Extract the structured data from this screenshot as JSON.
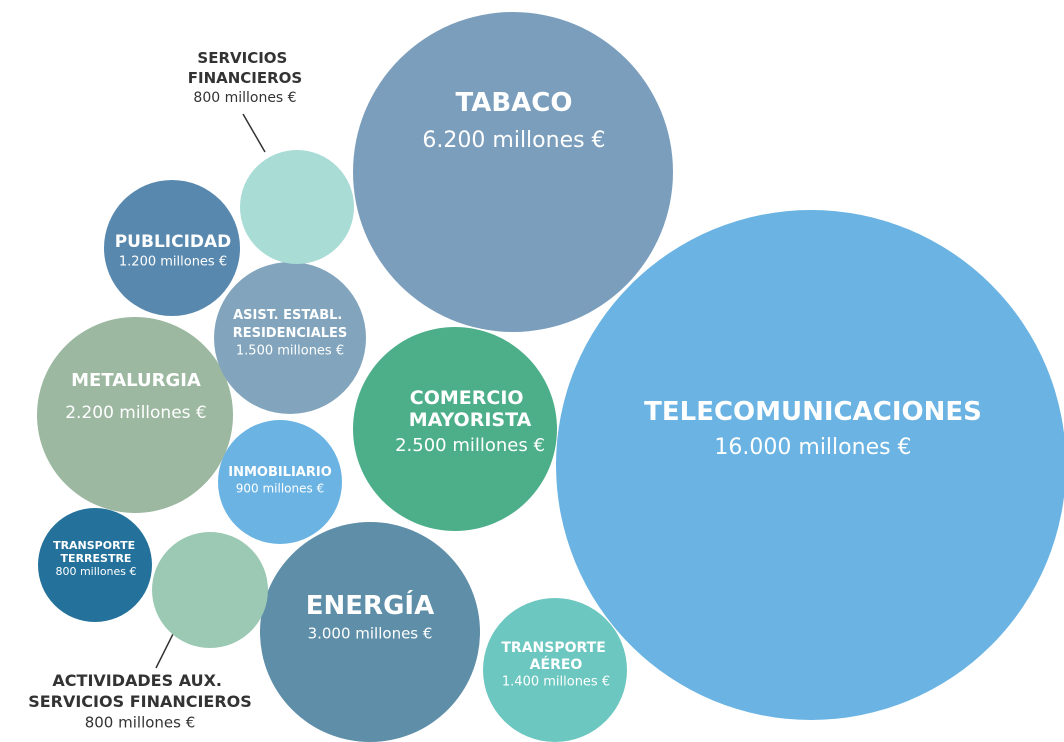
{
  "chart_data": {
    "type": "bubble",
    "categories": [
      "TELECOMUNICACIONES",
      "TABACO",
      "COMERCIO MAYORISTA",
      "ENERGÍA",
      "TRANSPORTE AÉREO",
      "METALURGIA",
      "ASIST. ESTABL. RESIDENCIALES",
      "PUBLICIDAD",
      "SERVICIOS FINANCIEROS",
      "INMOBILIARIO",
      "TRANSPORTE TERRESTRE",
      "ACTIVIDADES AUX. SERVICIOS FINANCIEROS"
    ],
    "values": [
      16000,
      6200,
      2500,
      3000,
      1400,
      2200,
      1500,
      1200,
      800,
      900,
      800,
      800
    ],
    "value_labels": [
      "16.000 millones €",
      "6.200 millones €",
      "2.500 millones €",
      "3.000 millones €",
      "1.400 millones €",
      "2.200 millones €",
      "1.500 millones €",
      "1.200 millones €",
      "800 millones €",
      "900 millones €",
      "800 millones €",
      "800 millones €"
    ],
    "colors": [
      "#6ab3e3",
      "#7a9ebc",
      "#4daf8a",
      "#5e8ea8",
      "#6cc7c0",
      "#9cb8a0",
      "#82a5bd",
      "#5888ae",
      "#a8dcd5",
      "#6ab3e3",
      "#24729b",
      "#9cc9b4"
    ]
  }
}
